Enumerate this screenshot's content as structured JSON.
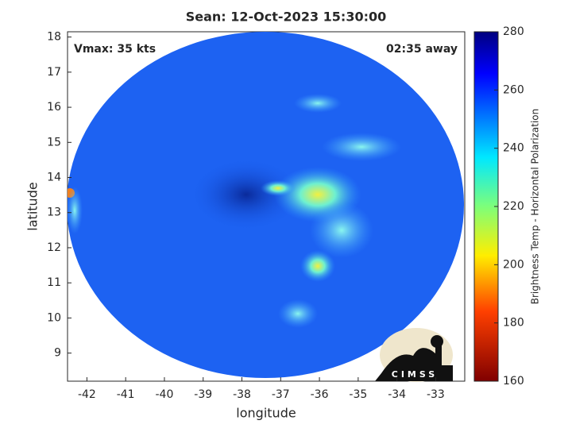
{
  "chart_data": {
    "type": "image",
    "title": "Sean: 12-Oct-2023 15:30:00",
    "xlabel": "longitude",
    "ylabel": "latitude",
    "annotations": [
      "Vmax: 35 kts",
      "02:35 away"
    ],
    "xlim": [
      -42.5,
      -32.25
    ],
    "ylim": [
      8.2,
      18.15
    ],
    "xticks": [
      -42,
      -41,
      -40,
      -39,
      -38,
      -37,
      -36,
      -35,
      -34,
      -33
    ],
    "yticks": [
      9,
      10,
      11,
      12,
      13,
      14,
      15,
      16,
      17,
      18
    ],
    "colorbar": {
      "label": "Brightness Temp - Horizontal Polarization",
      "lim": [
        160,
        280
      ],
      "ticks": [
        160,
        180,
        200,
        220,
        240,
        260,
        280
      ]
    },
    "logo": "CIMSS"
  }
}
